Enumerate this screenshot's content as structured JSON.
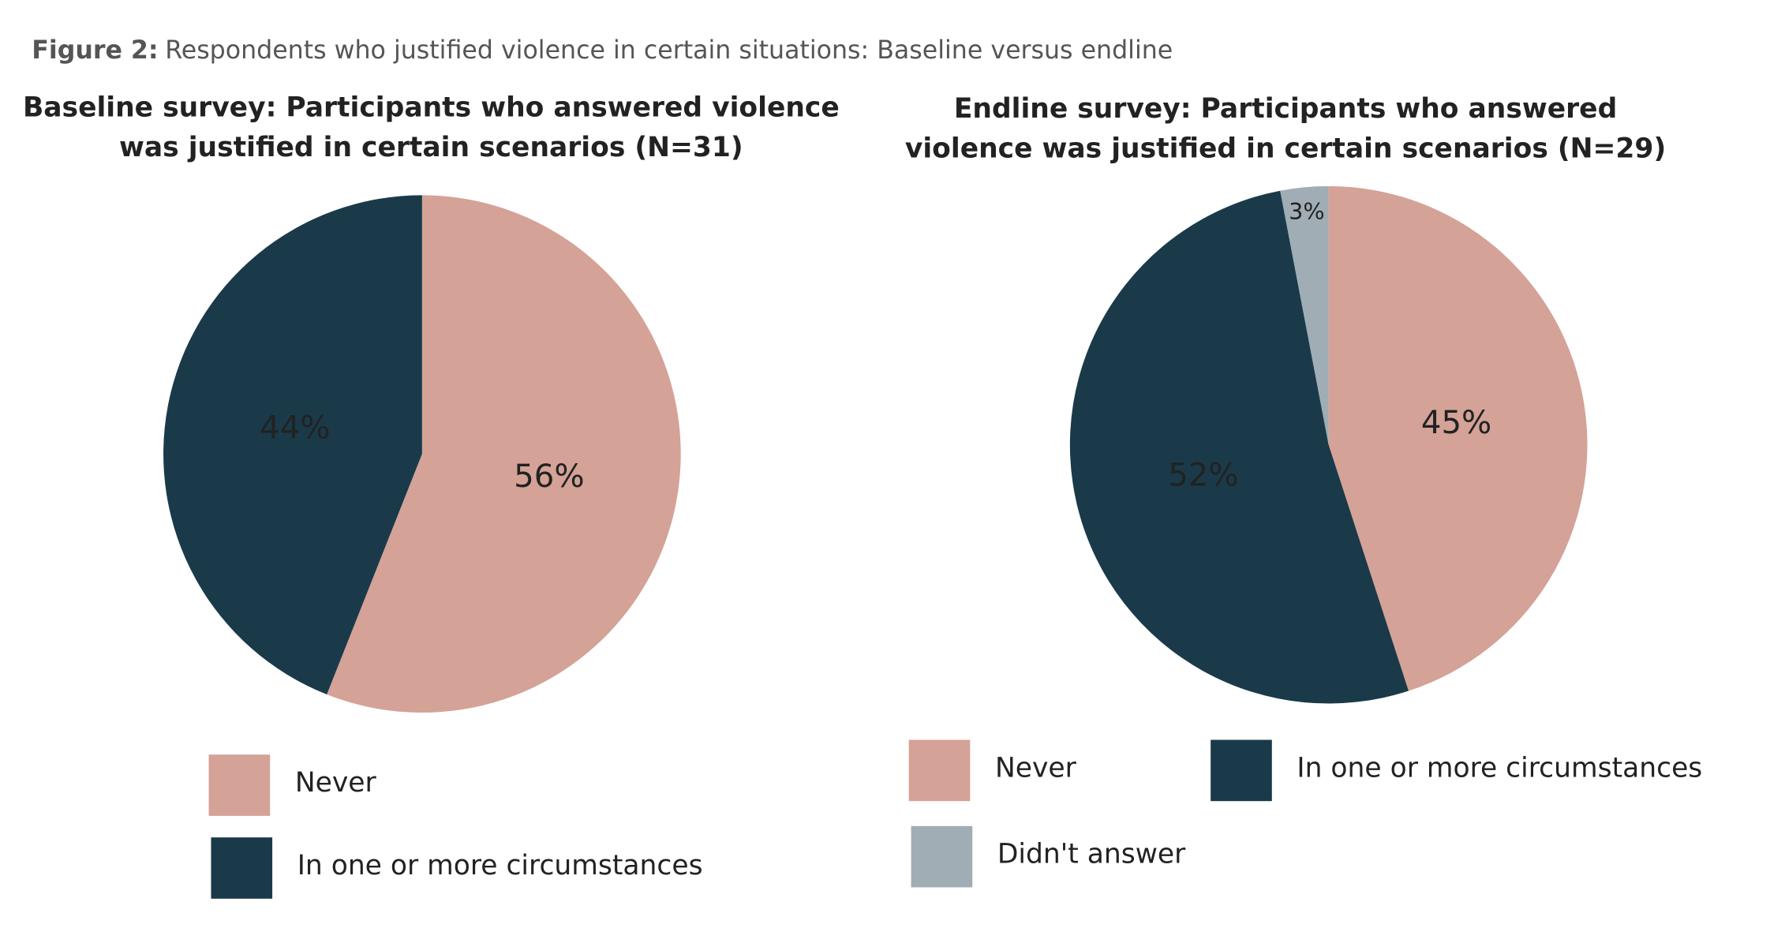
{
  "figure": {
    "label": "Figure 2:",
    "title": "Respondents who justified violence in certain situations: Baseline versus endline"
  },
  "chart_data": [
    {
      "type": "pie",
      "title": [
        "Baseline survey: Participants who answered violence",
        "was justified in certain scenarios (N=31)"
      ],
      "categories": [
        "Never",
        "In one or more circumstances"
      ],
      "values": [
        56,
        44
      ],
      "value_labels": [
        "56%",
        "44%"
      ],
      "colors": [
        "#d4a297",
        "#1a3a4a"
      ]
    },
    {
      "type": "pie",
      "title": [
        "Endline survey: Participants who answered",
        "violence was justified in certain scenarios (N=29)"
      ],
      "categories": [
        "Never",
        "In one or more circumstances",
        "Didn't answer"
      ],
      "values": [
        45,
        52,
        3
      ],
      "value_labels": [
        "45%",
        "52%",
        "3%"
      ],
      "colors": [
        "#d4a297",
        "#1a3a4a",
        "#a0adb5"
      ]
    }
  ]
}
